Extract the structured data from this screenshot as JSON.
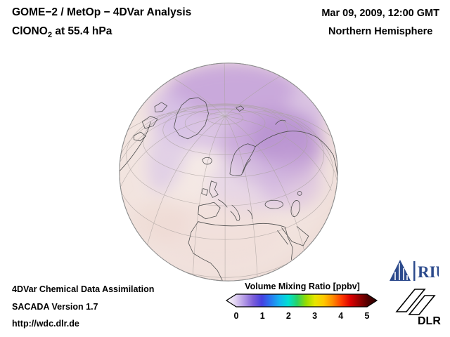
{
  "header": {
    "title": "GOME−2 / MetOp − 4DVar Analysis",
    "species": "ClONO",
    "species_subscript": "2",
    "level": " at 55.4 hPa",
    "datetime": "Mar 09, 2009, 12:00 GMT",
    "hemisphere": "Northern Hemisphere"
  },
  "footer": {
    "line1": "4DVar Chemical Data Assimilation",
    "line2": "SACADA Version 1.7",
    "line3": "http://wdc.dlr.de"
  },
  "colorbar": {
    "title": "Volume Mixing Ratio [ppbv]",
    "ticks": [
      "0",
      "1",
      "2",
      "3",
      "4",
      "5"
    ],
    "gradient_colors": [
      "#ffffff",
      "#e2d4f2",
      "#b49ae6",
      "#7d5fd8",
      "#4640e0",
      "#2878f0",
      "#14b4f0",
      "#00e0d2",
      "#28d264",
      "#96dc00",
      "#e6e600",
      "#ffc800",
      "#ff8c00",
      "#ff3c00",
      "#dc0000",
      "#960000",
      "#500000",
      "#280000"
    ]
  },
  "logos": {
    "riu_label": "RIU",
    "dlr_label": "DLR"
  },
  "chart_data": {
    "type": "heatmap",
    "title": "ClONO2 volume mixing ratio at 55.4 hPa, Northern Hemisphere (orthographic globe view)",
    "colorbar_label": "Volume Mixing Ratio [ppbv]",
    "scale_min": 0,
    "scale_max": 5,
    "scale_ticks": [
      0,
      1,
      2,
      3,
      4,
      5
    ],
    "field_summary": [
      {
        "region": "Arctic cap and northern Eurasia (purple maximum)",
        "approx_ppbv": 1.0
      },
      {
        "region": "Northern mid-latitudes (Europe, North Atlantic, lavender band)",
        "approx_ppbv": 0.5
      },
      {
        "region": "Subtropics and tropics (Africa, Arabia, pale background)",
        "approx_ppbv": 0.15
      }
    ]
  }
}
